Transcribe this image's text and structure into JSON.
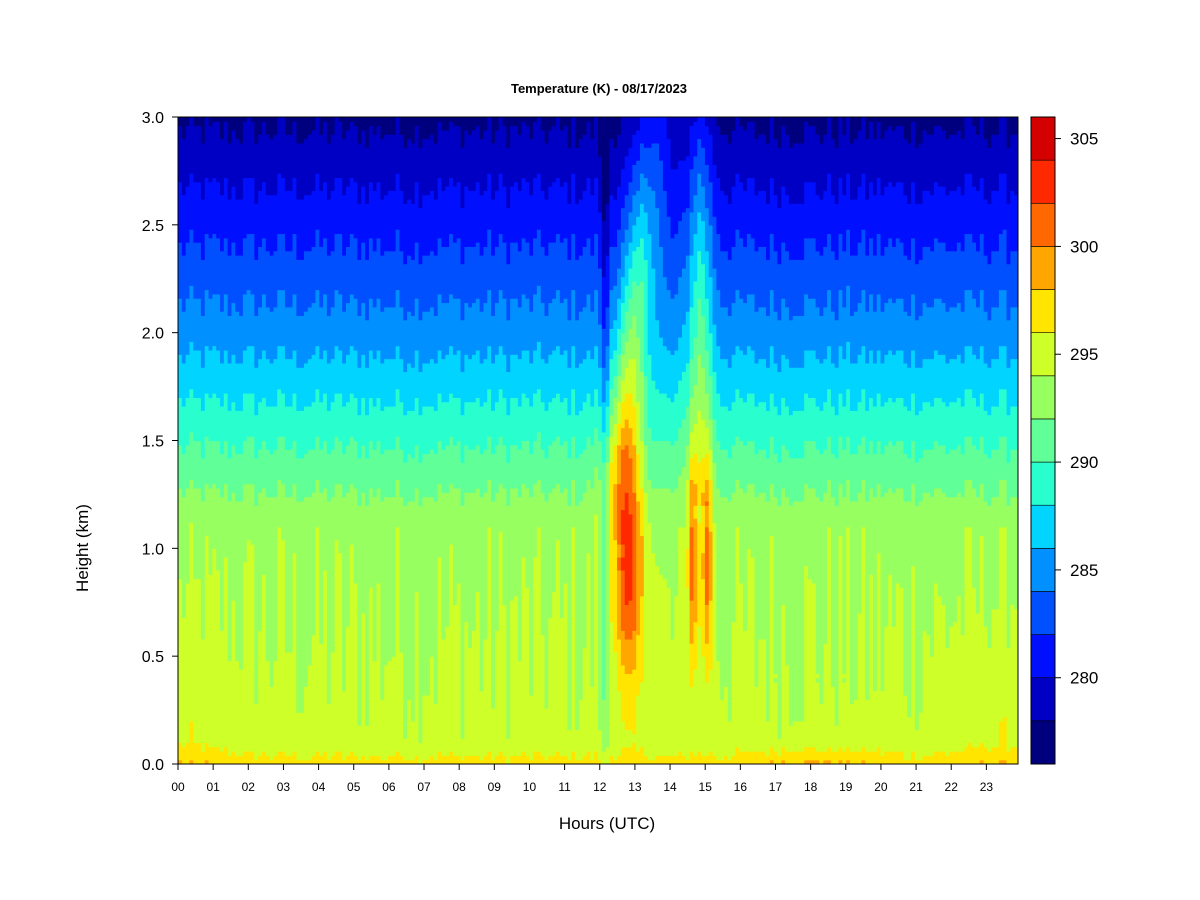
{
  "chart_data": {
    "type": "heatmap",
    "title": "Temperature (K) - 08/17/2023",
    "xlabel": "Hours (UTC)",
    "ylabel": "Height (km)",
    "xlim": [
      0,
      23.9
    ],
    "ylim": [
      0.0,
      3.0
    ],
    "x_tick_labels": [
      "00",
      "01",
      "02",
      "03",
      "04",
      "05",
      "06",
      "07",
      "08",
      "09",
      "10",
      "11",
      "12",
      "13",
      "14",
      "15",
      "16",
      "17",
      "18",
      "19",
      "20",
      "21",
      "22",
      "23"
    ],
    "y_tick_labels": [
      "0.0",
      "0.5",
      "1.0",
      "1.5",
      "2.0",
      "2.5",
      "3.0"
    ],
    "y_ticks": [
      0.0,
      0.5,
      1.0,
      1.5,
      2.0,
      2.5,
      3.0
    ],
    "colorbar": {
      "range": [
        276,
        306
      ],
      "levels": [
        276,
        278,
        280,
        282,
        284,
        286,
        288,
        290,
        292,
        294,
        296,
        298,
        300,
        302,
        304,
        306
      ],
      "colors": [
        "#00007f",
        "#0000c4",
        "#0010ff",
        "#0050ff",
        "#0090ff",
        "#00d4ff",
        "#29ffce",
        "#60ff97",
        "#97ff60",
        "#ceff29",
        "#ffe500",
        "#ffa700",
        "#ff6800",
        "#ff2900",
        "#d40000",
        "#7f0000"
      ],
      "tick_values": [
        280,
        285,
        290,
        295,
        300,
        305
      ],
      "tick_labels": [
        "280",
        "285",
        "290",
        "295",
        "300",
        "305"
      ]
    },
    "grid": false,
    "legend": "colorbar-right",
    "description_points": [
      {
        "hour": 0,
        "height_km": 0.0,
        "temp_k": 297
      },
      {
        "hour": 0,
        "height_km": 0.5,
        "temp_k": 295
      },
      {
        "hour": 0,
        "height_km": 1.0,
        "temp_k": 294
      },
      {
        "hour": 0,
        "height_km": 1.5,
        "temp_k": 290
      },
      {
        "hour": 0,
        "height_km": 2.0,
        "temp_k": 285
      },
      {
        "hour": 0,
        "height_km": 2.5,
        "temp_k": 281
      },
      {
        "hour": 0,
        "height_km": 3.0,
        "temp_k": 277
      },
      {
        "hour": 12.7,
        "height_km": 0.9,
        "temp_k": 302
      },
      {
        "hour": 14.7,
        "height_km": 0.9,
        "temp_k": 301
      },
      {
        "hour": 15.0,
        "height_km": 0.9,
        "temp_k": 301
      },
      {
        "hour": 18,
        "height_km": 0.05,
        "temp_k": 297
      }
    ]
  }
}
